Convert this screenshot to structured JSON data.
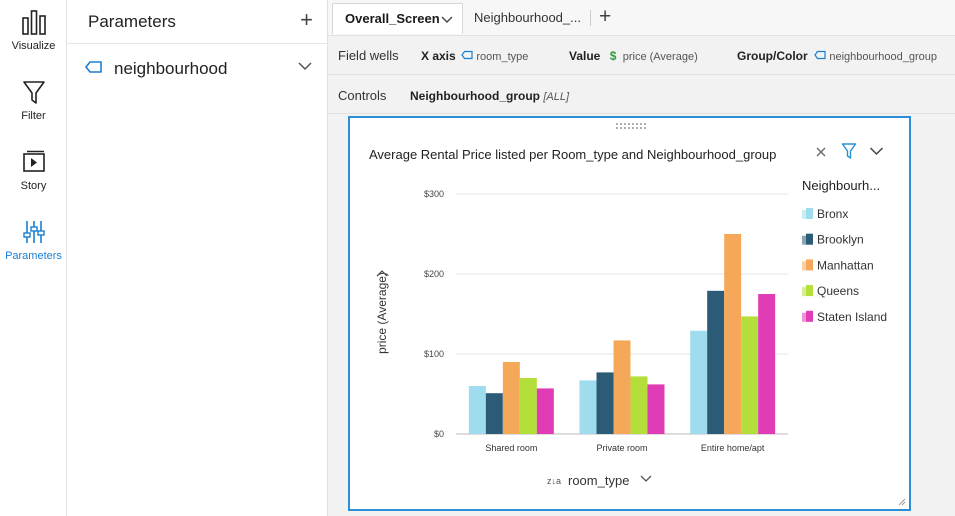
{
  "rail": {
    "items": [
      {
        "label": "Visualize",
        "icon": "bar-chart-icon"
      },
      {
        "label": "Filter",
        "icon": "funnel-icon"
      },
      {
        "label": "Story",
        "icon": "story-icon"
      },
      {
        "label": "Parameters",
        "icon": "sliders-icon"
      }
    ],
    "active_color": "#1b7fd1"
  },
  "params": {
    "title": "Parameters",
    "add": "+",
    "item_label": "neighbourhood"
  },
  "tabs": {
    "items": [
      "Overall_Screen",
      "Neighbourhood_..."
    ],
    "add": "+"
  },
  "wells": {
    "label": "Field wells",
    "x_label": "X axis",
    "x_value": "room_type",
    "value_label": "Value",
    "value_value": "price (Average)",
    "group_label": "Group/Color",
    "group_value": "neighbourhood_group"
  },
  "controls": {
    "label": "Controls",
    "name": "Neighbourhood_group",
    "value": "[ALL]"
  },
  "visual": {
    "title": "Average Rental Price listed per Room_type and Neighbourhood_group",
    "accent": "#2a8fd4"
  },
  "chart_data": {
    "type": "bar",
    "title": "Average Rental Price listed per Room_type and Neighbourhood_group",
    "xlabel": "room_type",
    "ylabel": "price (Average)",
    "categories": [
      "Shared room",
      "Private room",
      "Entire home/apt"
    ],
    "ylim": [
      0,
      300
    ],
    "yticks": [
      0,
      100,
      200,
      300
    ],
    "ytick_labels": [
      "$0",
      "$100",
      "$200",
      "$300"
    ],
    "legend_title": "Neighbourh...",
    "legend_position": "right",
    "grid": true,
    "series": [
      {
        "name": "Bronx",
        "color": "#9edcee",
        "values": [
          60,
          67,
          129
        ]
      },
      {
        "name": "Brooklyn",
        "color": "#2b5b77",
        "values": [
          51,
          77,
          179
        ]
      },
      {
        "name": "Manhattan",
        "color": "#f6a85a",
        "values": [
          90,
          117,
          250
        ]
      },
      {
        "name": "Queens",
        "color": "#b4df3b",
        "values": [
          70,
          72,
          147
        ]
      },
      {
        "name": "Staten Island",
        "color": "#e03cb5",
        "values": [
          57,
          62,
          175
        ]
      }
    ]
  }
}
